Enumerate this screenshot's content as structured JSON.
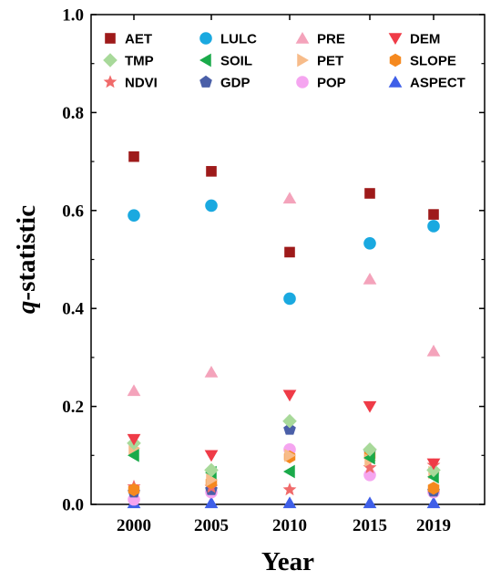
{
  "chart_data": {
    "type": "scatter",
    "xlabel": "Year",
    "ylabel_italic": "q",
    "ylabel_rest": "-statistic",
    "x": [
      "2000",
      "2005",
      "2010",
      "2015",
      "2019"
    ],
    "ylim": [
      0.0,
      1.0
    ],
    "yticks": [
      "0.0",
      "0.2",
      "0.4",
      "0.6",
      "0.8",
      "1.0"
    ],
    "legend_position": "top",
    "grid": false,
    "series": [
      {
        "name": "AET",
        "marker": "square",
        "color": "#9e1a1a",
        "values": [
          0.71,
          0.68,
          0.515,
          0.635,
          0.592
        ]
      },
      {
        "name": "LULC",
        "marker": "circle",
        "color": "#1aa9e0",
        "values": [
          0.59,
          0.61,
          0.42,
          0.533,
          0.568
        ]
      },
      {
        "name": "PRE",
        "marker": "triangle-up",
        "color": "#f4a3bb",
        "values": [
          0.232,
          0.27,
          0.625,
          0.46,
          0.313
        ]
      },
      {
        "name": "DEM",
        "marker": "triangle-down",
        "color": "#ef3b47",
        "values": [
          0.133,
          0.1,
          0.223,
          0.2,
          0.083
        ]
      },
      {
        "name": "TMP",
        "marker": "diamond",
        "color": "#a8d99a",
        "values": [
          0.125,
          0.07,
          0.17,
          0.112,
          0.07
        ]
      },
      {
        "name": "SOIL",
        "marker": "triangle-left",
        "color": "#1aaa4a",
        "values": [
          0.1,
          0.065,
          0.067,
          0.095,
          0.056
        ]
      },
      {
        "name": "PET",
        "marker": "triangle-right",
        "color": "#f7bc8a",
        "values": [
          0.115,
          0.05,
          0.1,
          0.09,
          0.065
        ]
      },
      {
        "name": "SLOPE",
        "marker": "hexagon",
        "color": "#f5891f",
        "values": [
          0.03,
          0.045,
          0.097,
          0.1,
          0.033
        ]
      },
      {
        "name": "NDVI",
        "marker": "star",
        "color": "#f06a6a",
        "values": [
          0.036,
          0.035,
          0.03,
          0.075,
          0.08
        ]
      },
      {
        "name": "GDP",
        "marker": "pentagon",
        "color": "#4a5fa8",
        "values": [
          0.025,
          0.03,
          0.153,
          0.107,
          0.027
        ]
      },
      {
        "name": "POP",
        "marker": "circle",
        "color": "#f5a5f0",
        "values": [
          0.01,
          0.025,
          0.112,
          0.06,
          0.025
        ]
      },
      {
        "name": "ASPECT",
        "marker": "triangle-up",
        "color": "#3f5fe8",
        "values": [
          0.003,
          0.003,
          0.003,
          0.003,
          0.003
        ]
      }
    ]
  }
}
